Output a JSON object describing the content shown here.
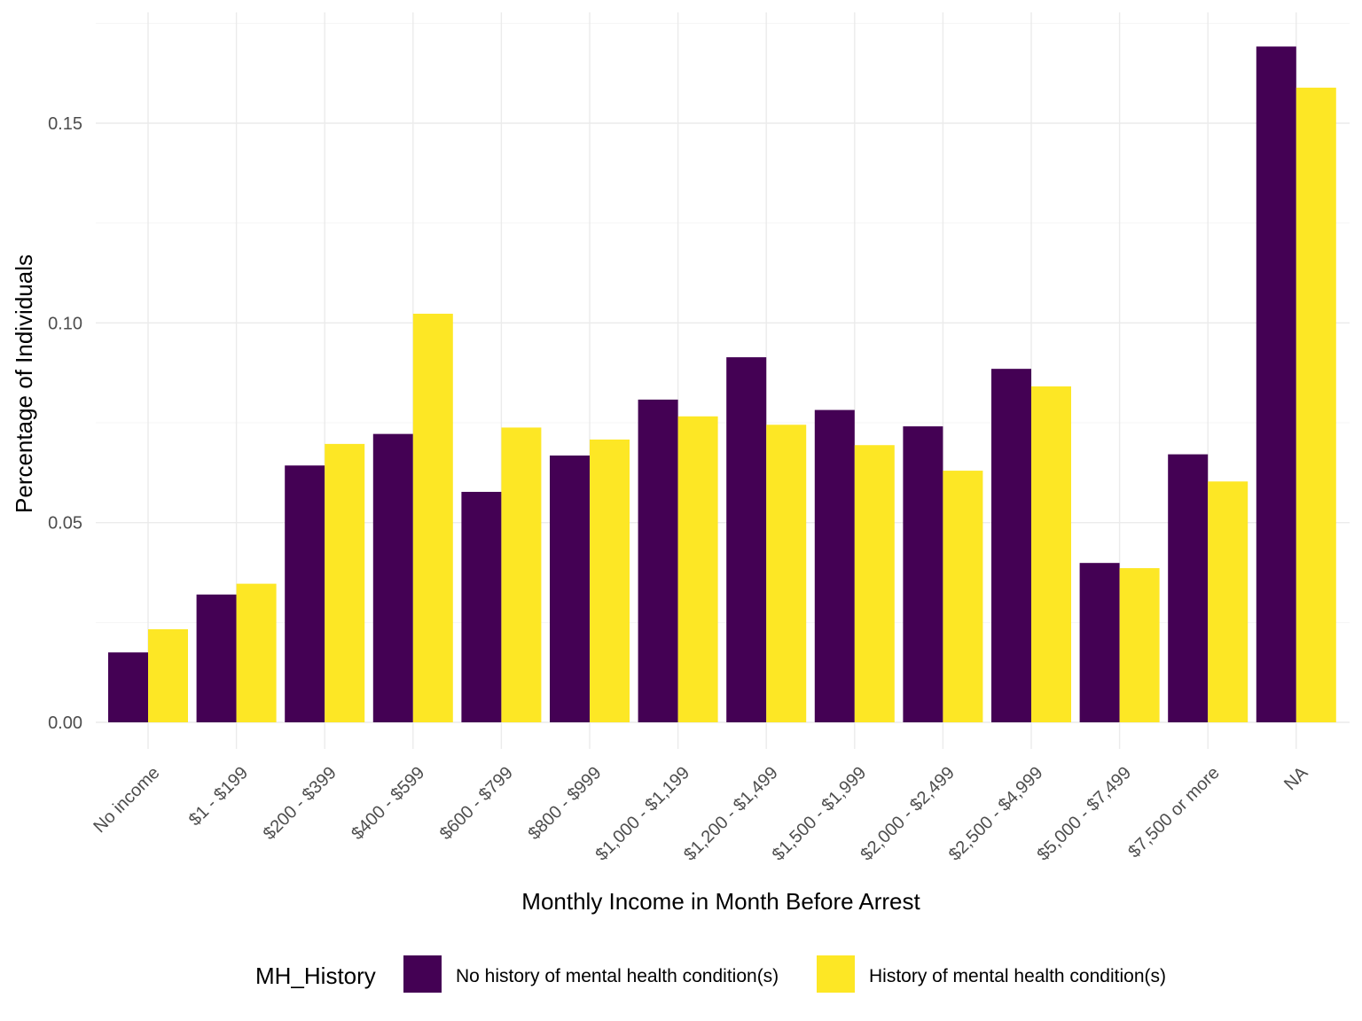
{
  "chart_data": {
    "type": "bar",
    "title": "",
    "xlabel": "Monthly Income in Month Before Arrest",
    "ylabel": "Percentage of Individuals",
    "ylim": [
      -0.0065,
      0.175
    ],
    "yticks": [
      0.0,
      0.05,
      0.1,
      0.15
    ],
    "ytick_labels": [
      "0.00",
      "0.05",
      "0.10",
      "0.15"
    ],
    "grid": true,
    "legend_position": "bottom",
    "legend_title": "MH_History",
    "categories": [
      "No income",
      "$1 - $199",
      "$200 - $399",
      "$400 - $599",
      "$600 - $799",
      "$800 - $999",
      "$1,000 - $1,199",
      "$1,200 - $1,499",
      "$1,500 - $1,999",
      "$2,000 - $2,499",
      "$2,500 - $4,999",
      "$5,000 - $7,499",
      "$7,500 or more",
      "NA"
    ],
    "series": [
      {
        "name": "No history of mental health condition(s)",
        "color": "#440154",
        "values": [
          0.0175,
          0.032,
          0.0643,
          0.0722,
          0.0577,
          0.0668,
          0.0808,
          0.0914,
          0.0782,
          0.0741,
          0.0885,
          0.0399,
          0.0671,
          0.1692
        ]
      },
      {
        "name": "History of mental health condition(s)",
        "color": "#FDE725",
        "values": [
          0.0233,
          0.0347,
          0.0697,
          0.1023,
          0.0738,
          0.0708,
          0.0766,
          0.0745,
          0.0694,
          0.063,
          0.0841,
          0.0386,
          0.0603,
          0.1589
        ]
      }
    ]
  }
}
